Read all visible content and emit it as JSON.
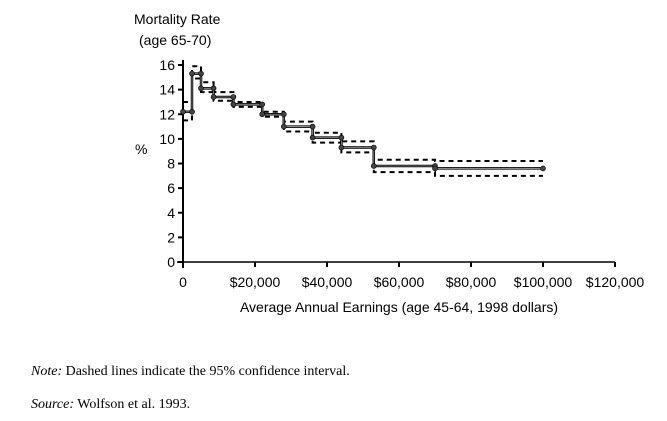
{
  "chart_data": {
    "type": "line",
    "subtype": "step",
    "title": "Mortality Rate (age 65-70)",
    "title_lines": [
      "Mortality Rate",
      "(age 65-70)"
    ],
    "xlabel": "Average Annual Earnings (age 45-64, 1998 dollars)",
    "ylabel": "%",
    "xlim": [
      0,
      120000
    ],
    "ylim": [
      0,
      16
    ],
    "x_ticks": [
      0,
      20000,
      40000,
      60000,
      80000,
      100000,
      120000
    ],
    "x_tick_labels": [
      "0",
      "$20,000",
      "$40,000",
      "$60,000",
      "$80,000",
      "$100,000",
      "$120,000"
    ],
    "y_ticks": [
      0,
      2,
      4,
      6,
      8,
      10,
      12,
      14,
      16
    ],
    "y_tick_labels": [
      "0",
      "2",
      "4",
      "6",
      "8",
      "10",
      "12",
      "14",
      "16"
    ],
    "grid": false,
    "legend": "none",
    "step_boundaries": [
      0,
      2500,
      5000,
      8500,
      14000,
      22000,
      28000,
      36000,
      44000,
      53000,
      70000,
      100000
    ],
    "series": [
      {
        "name": "Mortality rate",
        "style": "solid",
        "values": [
          12.2,
          15.3,
          14.1,
          13.4,
          12.8,
          12.0,
          11.0,
          10.1,
          9.3,
          7.8,
          7.6
        ]
      },
      {
        "name": "95% CI upper",
        "style": "dashed",
        "values": [
          13.0,
          15.9,
          14.6,
          13.8,
          13.0,
          12.2,
          11.4,
          10.5,
          9.8,
          8.3,
          8.2
        ]
      },
      {
        "name": "95% CI lower",
        "style": "dashed",
        "values": [
          11.5,
          14.9,
          13.8,
          13.1,
          12.6,
          11.8,
          10.6,
          9.7,
          8.9,
          7.3,
          7.0
        ]
      }
    ]
  },
  "notes": {
    "note_label": "Note:",
    "note_text": " Dashed lines indicate the 95% confidence interval.",
    "source_label": "Source:",
    "source_text": " Wolfson et al. 1993."
  }
}
